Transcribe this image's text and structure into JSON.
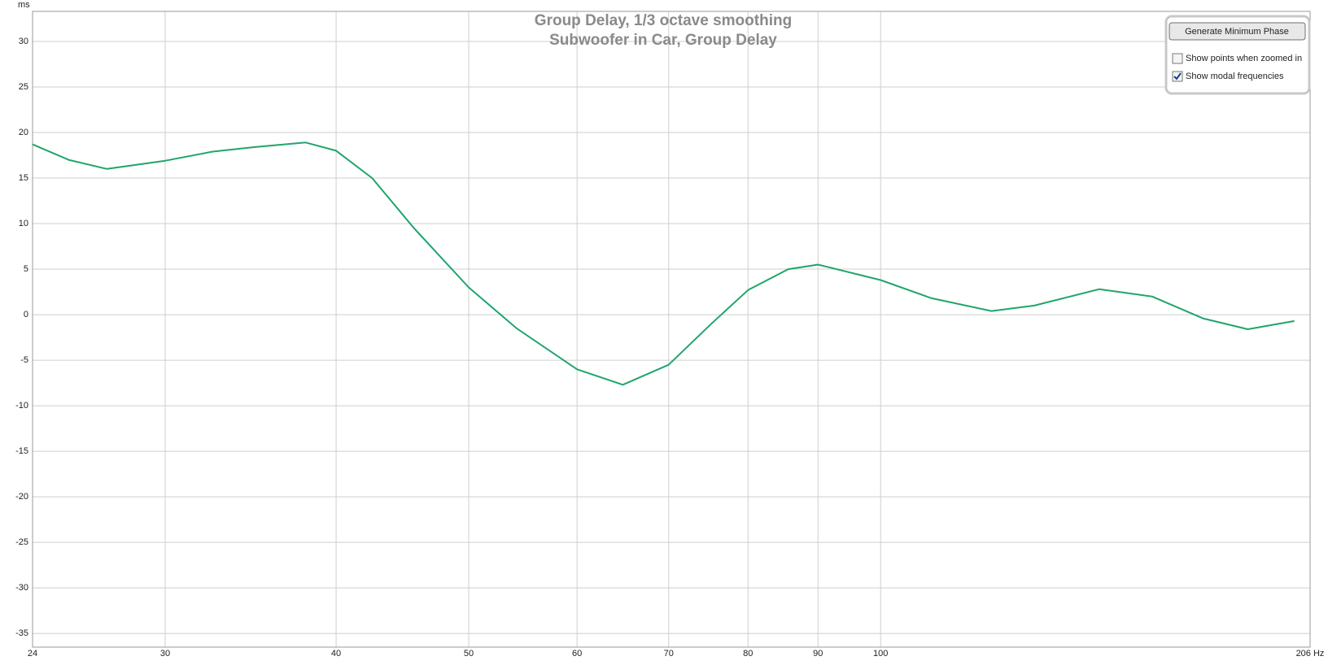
{
  "chart_data": {
    "type": "line",
    "title": "Group Delay, 1/3 octave smoothing",
    "subtitle": "Subwoofer in Car, Group Delay",
    "y_label": "ms",
    "x_scale": "log",
    "grid": true,
    "xlim": [
      24,
      206
    ],
    "xticks": [
      24,
      30,
      40,
      50,
      60,
      70,
      80,
      90,
      100,
      {
        "value": 206,
        "label": "206 Hz"
      }
    ],
    "ylim": [
      -36.5,
      33.3
    ],
    "yticks": [
      -35,
      -30,
      -25,
      -20,
      -15,
      -10,
      -5,
      0,
      5,
      10,
      15,
      20,
      25,
      30
    ],
    "x": [
      24,
      25.5,
      27.2,
      30,
      32.5,
      34.9,
      38,
      40,
      42.5,
      45.6,
      50,
      54.2,
      60,
      64.8,
      70,
      75.2,
      80,
      85.6,
      90,
      100,
      109,
      120.5,
      129.5,
      144.5,
      157.9,
      172,
      185.5,
      200.6
    ],
    "series": [
      {
        "color": "#1fa56b",
        "values": [
          18.7,
          17.0,
          16.0,
          16.9,
          17.9,
          18.4,
          18.9,
          18.0,
          15.0,
          9.5,
          3.0,
          -1.5,
          -6.0,
          -7.7,
          -5.5,
          -1.0,
          2.7,
          5.0,
          5.5,
          3.8,
          1.8,
          0.4,
          1.0,
          2.8,
          2.0,
          -0.4,
          -1.6,
          -0.7
        ]
      }
    ]
  },
  "controls": {
    "button": "Generate Minimum Phase",
    "checkboxes": [
      {
        "label": "Show points when zoomed in",
        "checked": false
      },
      {
        "label": "Show modal frequencies",
        "checked": true
      }
    ]
  }
}
